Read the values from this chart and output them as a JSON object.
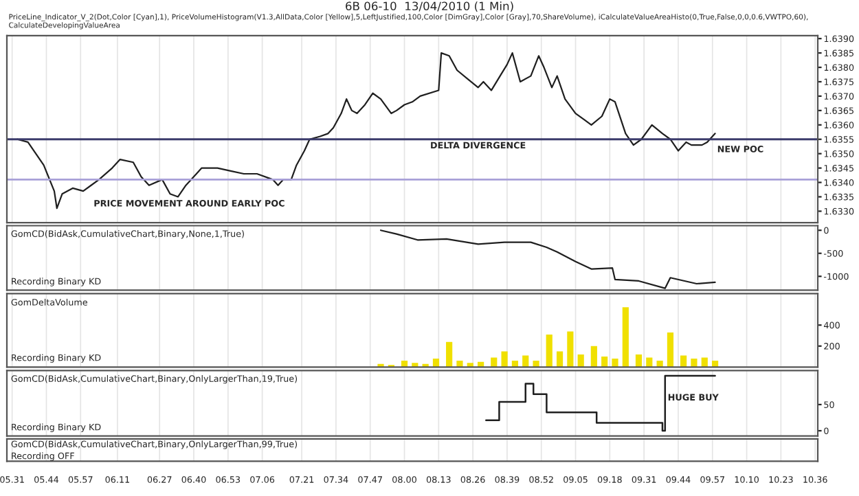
{
  "chart_data": [
    {
      "type": "line",
      "title": "6B 06-10  13/04/2010 (1 Min)",
      "subtitle": "PriceLine_Indicator_V_2(Dot,Color [Cyan],1), PriceVolumeHistogram(V1.3,AllData,Color [Yellow],5,LeftJustified,100,Color [DimGray],Color [Gray],70,ShareVolume), iCalculateValueAreaHisto(0,True,False,0,0,0.6,VWTPO,60), CalculateDevelopingValueArea",
      "x": [
        "2010-04-13T05:33",
        "2010-04-13T05:37",
        "2010-04-13T05:43",
        "2010-04-13T05:47",
        "2010-04-13T05:48",
        "2010-04-13T05:50",
        "2010-04-13T05:54",
        "2010-04-13T05:58",
        "2010-04-13T06:01",
        "2010-04-13T06:04",
        "2010-04-13T06:09",
        "2010-04-13T06:12",
        "2010-04-13T06:17",
        "2010-04-13T06:20",
        "2010-04-13T06:23",
        "2010-04-13T06:28",
        "2010-04-13T06:31",
        "2010-04-13T06:34",
        "2010-04-13T06:37",
        "2010-04-13T06:41",
        "2010-04-13T06:43",
        "2010-04-13T06:49",
        "2010-04-13T06:54",
        "2010-04-13T06:59",
        "2010-04-13T07:04",
        "2010-04-13T07:10",
        "2010-04-13T07:12",
        "2010-04-13T07:14",
        "2010-04-13T07:17",
        "2010-04-13T07:19",
        "2010-04-13T07:22",
        "2010-04-13T07:24",
        "2010-04-13T07:28",
        "2010-04-13T07:31",
        "2010-04-13T07:33",
        "2010-04-13T07:36",
        "2010-04-13T07:38",
        "2010-04-13T07:40",
        "2010-04-13T07:42",
        "2010-04-13T07:45",
        "2010-04-13T07:48",
        "2010-04-13T07:51",
        "2010-04-13T07:55",
        "2010-04-13T07:57",
        "2010-04-13T08:00",
        "2010-04-13T08:03",
        "2010-04-13T08:06",
        "2010-04-13T08:13",
        "2010-04-13T08:14",
        "2010-04-13T08:17",
        "2010-04-13T08:20",
        "2010-04-13T08:24",
        "2010-04-13T08:28",
        "2010-04-13T08:30",
        "2010-04-13T08:33",
        "2010-04-13T08:37",
        "2010-04-13T08:39",
        "2010-04-13T08:41",
        "2010-04-13T08:44",
        "2010-04-13T08:48",
        "2010-04-13T08:51",
        "2010-04-13T08:53",
        "2010-04-13T08:56",
        "2010-04-13T08:58",
        "2010-04-13T09:01",
        "2010-04-13T09:05",
        "2010-04-13T09:08",
        "2010-04-13T09:11",
        "2010-04-13T09:15",
        "2010-04-13T09:18",
        "2010-04-13T09:20",
        "2010-04-13T09:24",
        "2010-04-13T09:27",
        "2010-04-13T09:30",
        "2010-04-13T09:34",
        "2010-04-13T09:38",
        "2010-04-13T09:41",
        "2010-04-13T09:44",
        "2010-04-13T09:47",
        "2010-04-13T09:49",
        "2010-04-13T09:53",
        "2010-04-13T09:55",
        "2010-04-13T09:58"
      ],
      "series": [
        {
          "color": "#1f1f1f",
          "values": [
            1.6355,
            1.6354,
            1.6346,
            1.6337,
            1.6331,
            1.6336,
            1.6338,
            1.6337,
            1.6339,
            1.6341,
            1.6345,
            1.6348,
            1.6347,
            1.6342,
            1.6339,
            1.6341,
            1.6336,
            1.6335,
            1.6339,
            1.6343,
            1.6345,
            1.6345,
            1.6344,
            1.6343,
            1.6343,
            1.6341,
            1.6339,
            1.6341,
            1.6341,
            1.6346,
            1.6351,
            1.6355,
            1.6356,
            1.6357,
            1.6359,
            1.6364,
            1.6369,
            1.6365,
            1.6364,
            1.6367,
            1.6371,
            1.6369,
            1.6364,
            1.6365,
            1.6367,
            1.6368,
            1.637,
            1.6372,
            1.6385,
            1.6384,
            1.6379,
            1.6376,
            1.6373,
            1.6375,
            1.6372,
            1.6378,
            1.6381,
            1.6385,
            1.6375,
            1.6377,
            1.6384,
            1.638,
            1.6373,
            1.6377,
            1.6369,
            1.6364,
            1.6362,
            1.636,
            1.6363,
            1.6369,
            1.6368,
            1.6357,
            1.6353,
            1.6355,
            1.636,
            1.6357,
            1.6355,
            1.6351,
            1.6354,
            1.6353,
            1.6353,
            1.6354,
            1.6357
          ]
        }
      ],
      "xlim": [
        "2010-04-13T05:29",
        "2010-04-13T10:37"
      ],
      "ylim": [
        1.6326,
        1.6391
      ],
      "yticks": [
        {
          "value": 1.633,
          "label": "1.6330"
        },
        {
          "value": 1.6335,
          "label": "1.6335"
        },
        {
          "value": 1.634,
          "label": "1.6340"
        },
        {
          "value": 1.6345,
          "label": "1.6345"
        },
        {
          "value": 1.635,
          "label": "1.6350"
        },
        {
          "value": 1.6355,
          "label": "1.6355"
        },
        {
          "value": 1.636,
          "label": "1.6360"
        },
        {
          "value": 1.6365,
          "label": "1.6365"
        },
        {
          "value": 1.637,
          "label": "1.6370"
        },
        {
          "value": 1.6375,
          "label": "1.6375"
        },
        {
          "value": 1.638,
          "label": "1.6380"
        },
        {
          "value": 1.6385,
          "label": "1.6385"
        },
        {
          "value": 1.639,
          "label": "1.6390"
        }
      ],
      "ref_lines": [
        {
          "axis": "y",
          "value": 1.6355,
          "color": "#3b3b6b"
        },
        {
          "axis": "y",
          "value": 1.6341,
          "color": "#a8a0d8"
        }
      ],
      "annotations": [
        "DELTA DIVERGENCE",
        "PRICE MOVEMENT AROUND EARLY POC",
        "NEW POC"
      ],
      "grid": "x",
      "tick_labels": "y"
    },
    {
      "type": "line",
      "title": "GomCD(BidAsk,CumulativeChart,Binary,None,1,True)",
      "annotations": [
        "Recording Binary KD"
      ],
      "x": [
        "2010-04-13T07:51",
        "2010-04-13T07:57",
        "2010-04-13T08:05",
        "2010-04-13T08:16",
        "2010-04-13T08:28",
        "2010-04-13T08:38",
        "2010-04-13T08:48",
        "2010-04-13T08:54",
        "2010-04-13T08:58",
        "2010-04-13T09:05",
        "2010-04-13T09:11",
        "2010-04-13T09:19",
        "2010-04-13T09:20",
        "2010-04-13T09:29",
        "2010-04-13T09:39",
        "2010-04-13T09:41",
        "2010-04-13T09:51",
        "2010-04-13T09:58"
      ],
      "series": [
        {
          "color": "#1f1f1f",
          "values": [
            0,
            -80,
            -210,
            -190,
            -300,
            -260,
            -260,
            -370,
            -470,
            -680,
            -840,
            -820,
            -1070,
            -1100,
            -1260,
            -1030,
            -1160,
            -1130
          ]
        }
      ],
      "xlim": [
        "2010-04-13T05:29",
        "2010-04-13T10:37"
      ],
      "ylim": [
        -1300,
        100
      ],
      "yticks": [
        -1000,
        -500,
        0
      ],
      "grid": "x",
      "tick_labels": "y"
    },
    {
      "type": "bar",
      "title": "GomDeltaVolume",
      "annotations": [
        "Recording Binary KD"
      ],
      "x": [
        "2010-04-13T07:51",
        "2010-04-13T07:55",
        "2010-04-13T08:00",
        "2010-04-13T08:04",
        "2010-04-13T08:08",
        "2010-04-13T08:12",
        "2010-04-13T08:17",
        "2010-04-13T08:21",
        "2010-04-13T08:25",
        "2010-04-13T08:29",
        "2010-04-13T08:34",
        "2010-04-13T08:38",
        "2010-04-13T08:42",
        "2010-04-13T08:46",
        "2010-04-13T08:50",
        "2010-04-13T08:55",
        "2010-04-13T08:59",
        "2010-04-13T09:03",
        "2010-04-13T09:07",
        "2010-04-13T09:12",
        "2010-04-13T09:16",
        "2010-04-13T09:20",
        "2010-04-13T09:24",
        "2010-04-13T09:29",
        "2010-04-13T09:33",
        "2010-04-13T09:37",
        "2010-04-13T09:41",
        "2010-04-13T09:46",
        "2010-04-13T09:50",
        "2010-04-13T09:54",
        "2010-04-13T09:58"
      ],
      "series": [
        {
          "color": "#f0e000",
          "values": [
            30,
            20,
            60,
            40,
            30,
            80,
            240,
            60,
            40,
            50,
            90,
            150,
            60,
            110,
            60,
            310,
            150,
            340,
            120,
            200,
            100,
            80,
            570,
            120,
            90,
            60,
            330,
            110,
            80,
            90,
            60
          ]
        }
      ],
      "xlim": [
        "2010-04-13T05:29",
        "2010-04-13T10:37"
      ],
      "ylim": [
        0,
        700
      ],
      "yticks": [
        200,
        400
      ],
      "grid": "x",
      "tick_labels": "y"
    },
    {
      "type": "step",
      "title": "GomCD(BidAsk,CumulativeChart,Binary,OnlyLargerThan,19,True)",
      "annotations": [
        "Recording Binary KD",
        "HUGE BUY"
      ],
      "x": [
        "2010-04-13T08:31",
        "2010-04-13T08:36",
        "2010-04-13T08:46",
        "2010-04-13T08:49",
        "2010-04-13T08:54",
        "2010-04-13T09:13",
        "2010-04-13T09:38",
        "2010-04-13T09:39",
        "2010-04-13T09:58"
      ],
      "series": [
        {
          "color": "#1f1f1f",
          "values": [
            20,
            55,
            90,
            70,
            35,
            15,
            0,
            105,
            105
          ]
        }
      ],
      "xlim": [
        "2010-04-13T05:29",
        "2010-04-13T10:37"
      ],
      "ylim": [
        -10,
        115
      ],
      "yticks": [
        0,
        50
      ],
      "xticks": [
        {
          "value": "2010-04-13T05:31",
          "label": "05.31"
        },
        {
          "value": "2010-04-13T05:44",
          "label": "05.44"
        },
        {
          "value": "2010-04-13T05:57",
          "label": "05.57"
        },
        {
          "value": "2010-04-13T06:11",
          "label": "06.11"
        },
        {
          "value": "2010-04-13T06:27",
          "label": "06.27"
        },
        {
          "value": "2010-04-13T06:40",
          "label": "06.40"
        },
        {
          "value": "2010-04-13T06:53",
          "label": "06.53"
        },
        {
          "value": "2010-04-13T07:06",
          "label": "07.06"
        },
        {
          "value": "2010-04-13T07:21",
          "label": "07.21"
        },
        {
          "value": "2010-04-13T07:34",
          "label": "07.34"
        },
        {
          "value": "2010-04-13T07:47",
          "label": "07.47"
        },
        {
          "value": "2010-04-13T08:00",
          "label": "08.00"
        },
        {
          "value": "2010-04-13T08:13",
          "label": "08.13"
        },
        {
          "value": "2010-04-13T08:26",
          "label": "08.26"
        },
        {
          "value": "2010-04-13T08:39",
          "label": "08.39"
        },
        {
          "value": "2010-04-13T08:52",
          "label": "08.52"
        },
        {
          "value": "2010-04-13T09:05",
          "label": "09.05"
        },
        {
          "value": "2010-04-13T09:18",
          "label": "09.18"
        },
        {
          "value": "2010-04-13T09:31",
          "label": "09.31"
        },
        {
          "value": "2010-04-13T09:44",
          "label": "09.44"
        },
        {
          "value": "2010-04-13T09:57",
          "label": "09.57"
        },
        {
          "value": "2010-04-13T10:10",
          "label": "10.10"
        },
        {
          "value": "2010-04-13T10:23",
          "label": "10.23"
        },
        {
          "value": "2010-04-13T10:36",
          "label": "10.36"
        }
      ],
      "grid": "x"
    },
    {
      "type": "other",
      "title": "GomCD(BidAsk,CumulativeChart,Binary,OnlyLargerThan,99,True)",
      "annotations": [
        "Recording OFF"
      ]
    }
  ]
}
